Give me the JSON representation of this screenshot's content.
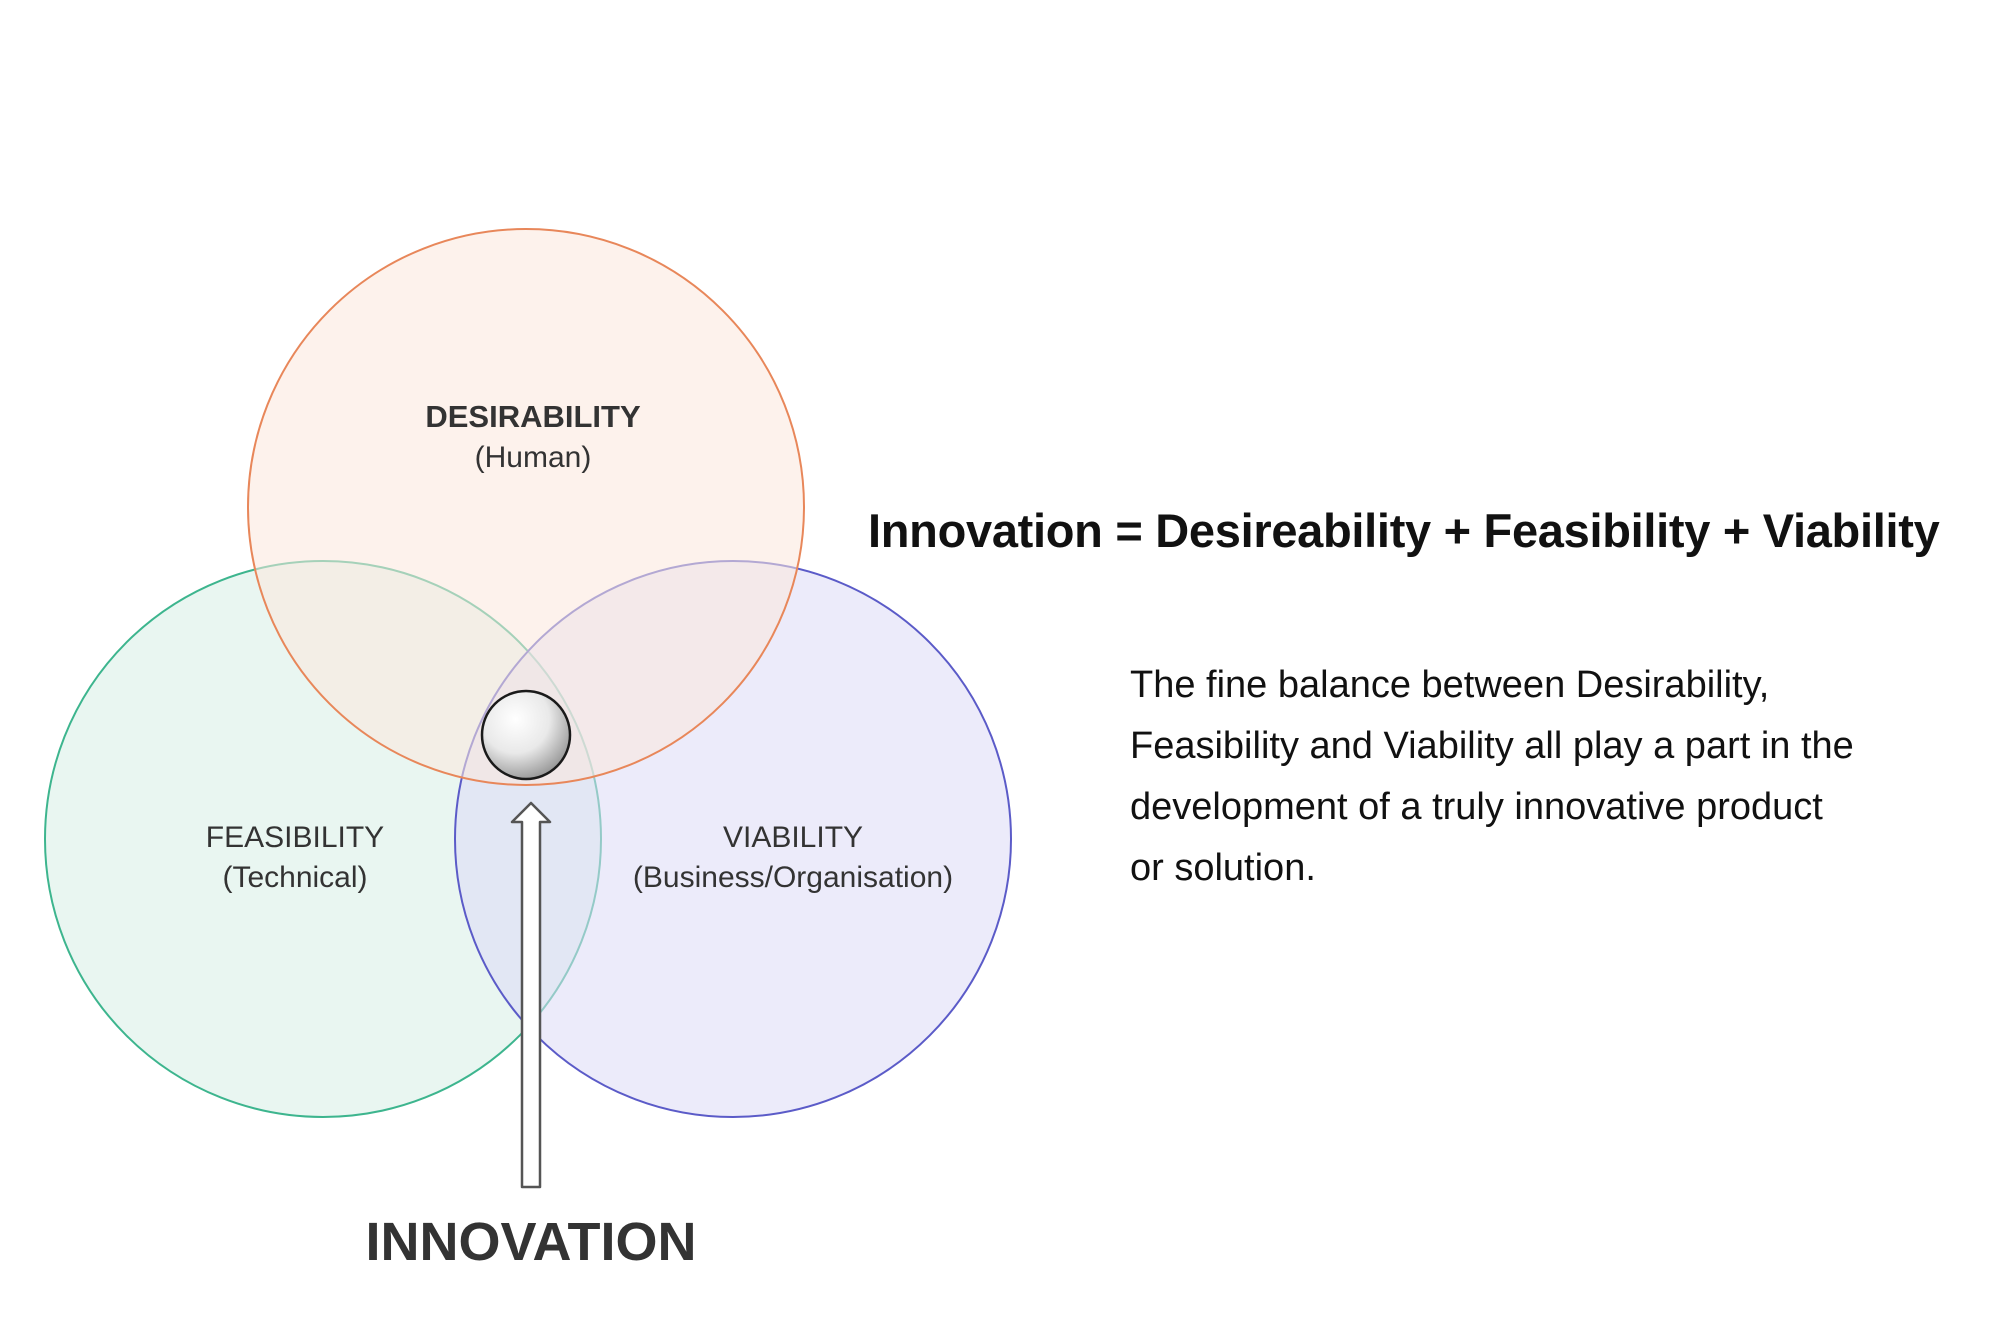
{
  "diagram": {
    "desirability": {
      "title": "DESIRABILITY",
      "subtitle": "(Human)"
    },
    "feasibility": {
      "title": "FEASIBILITY",
      "subtitle": "(Technical)"
    },
    "viability": {
      "title": "VIABILITY",
      "subtitle": "(Business/Organisation)"
    },
    "innovation_label": "INNOVATION"
  },
  "text": {
    "headline": "Innovation = Desireability + Feasibility + Viability",
    "description_lines": [
      "The fine balance between Desirability,",
      "Feasibility and Viability all play a part in the",
      "development of a truly innovative product",
      "or solution."
    ]
  },
  "colors": {
    "desirability_stroke": "#e8875a",
    "desirability_fill": "#fbe7dd",
    "feasibility_stroke": "#3db58e",
    "feasibility_fill": "#d7efe5",
    "viability_stroke": "#5b5bc8",
    "viability_fill": "#dcdaf5"
  }
}
